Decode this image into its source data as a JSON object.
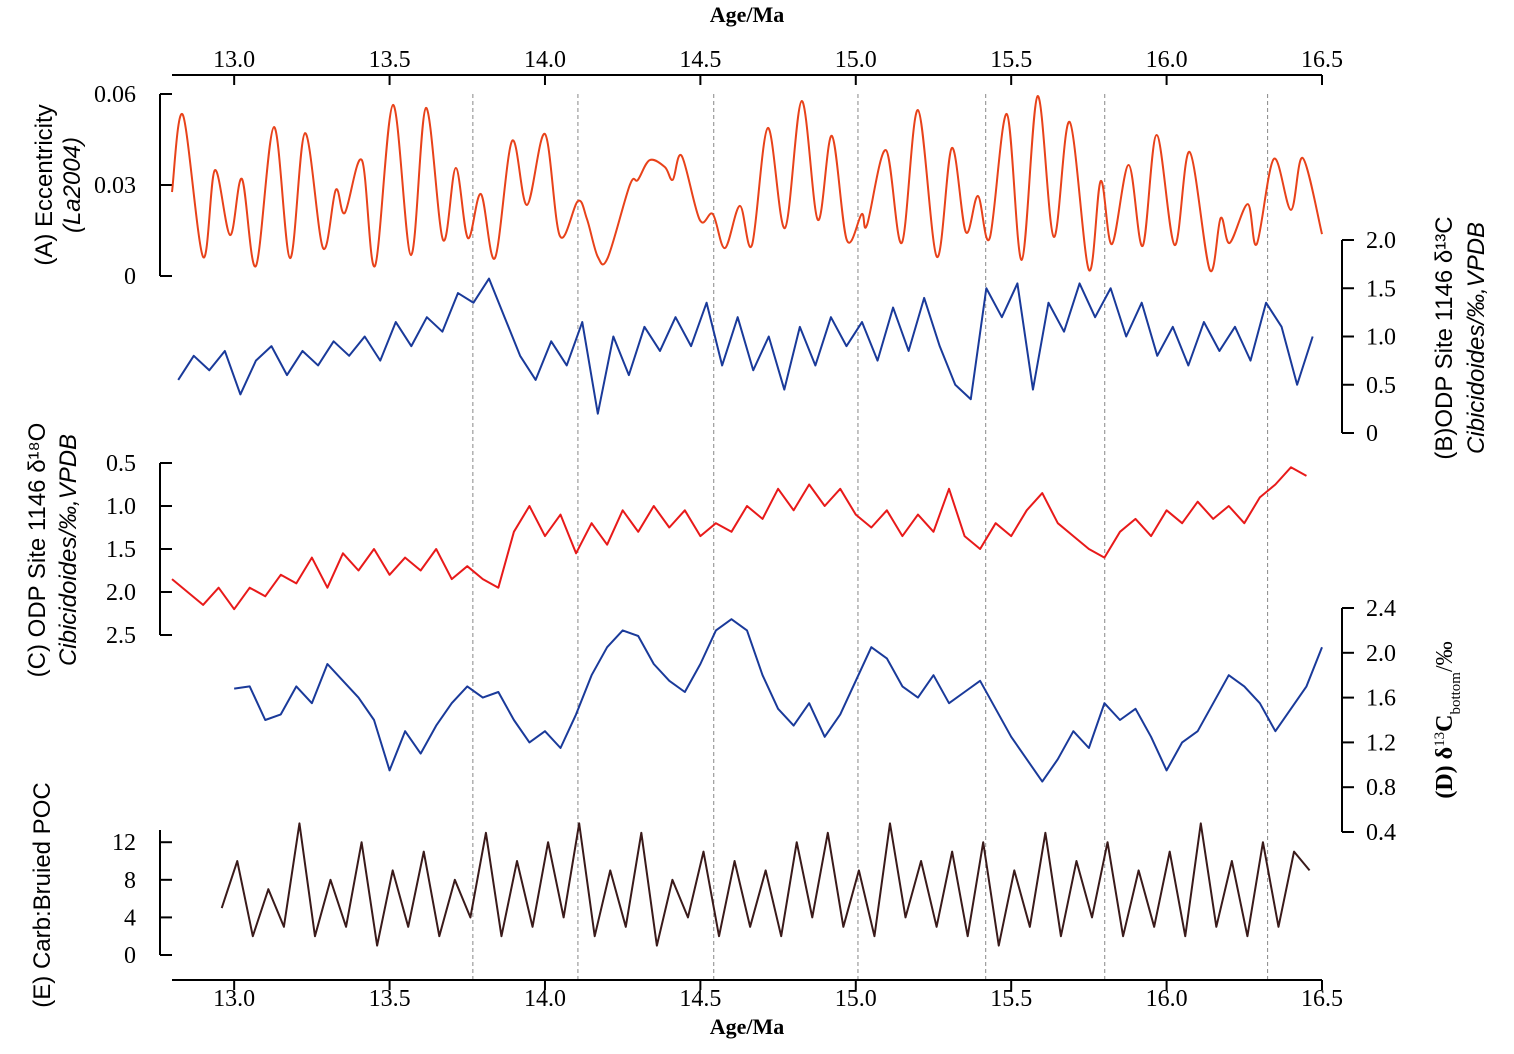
{
  "chart_data": {
    "type": "line",
    "title": "Age/Ma",
    "xlabel": "Age/Ma",
    "xlim": [
      12.8,
      16.5
    ],
    "xticks": [
      {
        "value": 13,
        "label": "13.0"
      },
      13.5,
      {
        "value": 14,
        "label": "14.0"
      },
      14.5,
      {
        "value": 15,
        "label": "15.0"
      },
      15.5,
      {
        "value": 16,
        "label": "16.0"
      },
      16.5
    ],
    "reference_lines": [
      13.768,
      14.106,
      14.543,
      15.007,
      15.418,
      15.801,
      16.325
    ],
    "panels": [
      {
        "ylabel_lines": [
          "(A) Eccentricity",
          "(La2004)"
        ],
        "y_side": "left",
        "color": "#e8421a",
        "smooth": true,
        "ylim": [
          0,
          0.06
        ],
        "yticks": [
          0,
          0.03,
          0.06
        ],
        "x": [
          12.8,
          12.835,
          12.9,
          12.938,
          12.987,
          13.025,
          13.07,
          13.128,
          13.18,
          13.228,
          13.286,
          13.327,
          13.356,
          13.411,
          13.453,
          13.511,
          13.569,
          13.617,
          13.672,
          13.713,
          13.752,
          13.794,
          13.839,
          13.894,
          13.942,
          14.0,
          14.048,
          14.106,
          14.135,
          14.17,
          14.202,
          14.273,
          14.299,
          14.337,
          14.386,
          14.411,
          14.44,
          14.498,
          14.54,
          14.579,
          14.627,
          14.666,
          14.717,
          14.772,
          14.826,
          14.878,
          14.923,
          14.971,
          15.019,
          15.036,
          15.097,
          15.148,
          15.2,
          15.261,
          15.309,
          15.354,
          15.393,
          15.431,
          15.486,
          15.534,
          15.585,
          15.637,
          15.688,
          15.75,
          15.788,
          15.824,
          15.878,
          15.923,
          15.968,
          16.026,
          16.074,
          16.139,
          16.174,
          16.203,
          16.261,
          16.29,
          16.345,
          16.4,
          16.438,
          16.5
        ],
        "values": [
          0.0277,
          0.0531,
          0.0063,
          0.0349,
          0.0135,
          0.032,
          0.0033,
          0.0491,
          0.0059,
          0.0471,
          0.0092,
          0.0284,
          0.0208,
          0.0382,
          0.0033,
          0.0564,
          0.0069,
          0.0554,
          0.0119,
          0.0356,
          0.0125,
          0.027,
          0.0059,
          0.0445,
          0.0234,
          0.0468,
          0.0132,
          0.0247,
          0.0188,
          0.0063,
          0.006,
          0.03,
          0.0317,
          0.0382,
          0.0359,
          0.0317,
          0.0396,
          0.0185,
          0.0204,
          0.0092,
          0.0231,
          0.0102,
          0.0488,
          0.0158,
          0.0577,
          0.0185,
          0.0462,
          0.0119,
          0.0204,
          0.0168,
          0.0415,
          0.0109,
          0.0547,
          0.0063,
          0.0422,
          0.0145,
          0.0264,
          0.0125,
          0.0534,
          0.0053,
          0.0593,
          0.0129,
          0.0508,
          0.002,
          0.0313,
          0.0105,
          0.0366,
          0.0099,
          0.0465,
          0.0102,
          0.0409,
          0.002,
          0.0191,
          0.0109,
          0.0237,
          0.0105,
          0.0386,
          0.0218,
          0.0389,
          0.0138
        ]
      },
      {
        "ylabel_lines": [
          "(B)ODP Site 1146 δ¹³C",
          "Cibicidoides/‰,VPDB"
        ],
        "y_side": "right",
        "color": "#1a3a9a",
        "ylim": [
          0,
          2
        ],
        "yticks": [
          0,
          0.5,
          {
            "value": 1,
            "label": "1.0"
          },
          1.5,
          {
            "value": 2,
            "label": "2.0"
          }
        ],
        "x": [
          12.82,
          12.87,
          12.92,
          12.97,
          13.02,
          13.07,
          13.12,
          13.17,
          13.22,
          13.27,
          13.32,
          13.37,
          13.42,
          13.47,
          13.52,
          13.57,
          13.62,
          13.67,
          13.72,
          13.77,
          13.82,
          13.87,
          13.92,
          13.97,
          14.02,
          14.07,
          14.12,
          14.17,
          14.22,
          14.27,
          14.32,
          14.37,
          14.42,
          14.47,
          14.52,
          14.57,
          14.62,
          14.67,
          14.72,
          14.77,
          14.82,
          14.87,
          14.92,
          14.97,
          15.02,
          15.07,
          15.12,
          15.17,
          15.22,
          15.27,
          15.32,
          15.37,
          15.42,
          15.47,
          15.52,
          15.57,
          15.62,
          15.67,
          15.72,
          15.77,
          15.82,
          15.87,
          15.92,
          15.97,
          16.02,
          16.07,
          16.12,
          16.17,
          16.22,
          16.27,
          16.32,
          16.37,
          16.42,
          16.47
        ],
        "values": [
          0.55,
          0.8,
          0.65,
          0.85,
          0.4,
          0.75,
          0.9,
          0.6,
          0.85,
          0.7,
          0.95,
          0.8,
          1.0,
          0.75,
          1.15,
          0.9,
          1.2,
          1.05,
          1.45,
          1.35,
          1.6,
          1.2,
          0.8,
          0.55,
          0.95,
          0.7,
          1.15,
          0.2,
          1.0,
          0.6,
          1.1,
          0.85,
          1.2,
          0.9,
          1.35,
          0.7,
          1.2,
          0.65,
          1.0,
          0.45,
          1.1,
          0.7,
          1.2,
          0.9,
          1.15,
          0.75,
          1.3,
          0.85,
          1.4,
          0.9,
          0.5,
          0.35,
          1.5,
          1.2,
          1.55,
          0.45,
          1.35,
          1.05,
          1.55,
          1.2,
          1.5,
          1.0,
          1.35,
          0.8,
          1.1,
          0.7,
          1.15,
          0.85,
          1.1,
          0.75,
          1.35,
          1.1,
          0.5,
          1.0
        ]
      },
      {
        "ylabel_lines": [
          "(C) ODP Site 1146 δ¹⁸O",
          "Cibicidoides/‰,VPDB"
        ],
        "y_side": "left",
        "color": "#e81a1a",
        "ylim": [
          2.5,
          0.5
        ],
        "yticks": [
          0.5,
          {
            "value": 1,
            "label": "1.0"
          },
          1.5,
          {
            "value": 2,
            "label": "2.0"
          },
          2.5
        ],
        "x": [
          12.8,
          12.85,
          12.9,
          12.95,
          13.0,
          13.05,
          13.1,
          13.15,
          13.2,
          13.25,
          13.3,
          13.35,
          13.4,
          13.45,
          13.5,
          13.55,
          13.6,
          13.65,
          13.7,
          13.75,
          13.8,
          13.85,
          13.9,
          13.95,
          14.0,
          14.05,
          14.1,
          14.15,
          14.2,
          14.25,
          14.3,
          14.35,
          14.4,
          14.45,
          14.5,
          14.55,
          14.6,
          14.65,
          14.7,
          14.75,
          14.8,
          14.85,
          14.9,
          14.95,
          15.0,
          15.05,
          15.1,
          15.15,
          15.2,
          15.25,
          15.3,
          15.35,
          15.4,
          15.45,
          15.5,
          15.55,
          15.6,
          15.65,
          15.7,
          15.75,
          15.8,
          15.85,
          15.9,
          15.95,
          16.0,
          16.05,
          16.1,
          16.15,
          16.2,
          16.25,
          16.3,
          16.35,
          16.4,
          16.45
        ],
        "values": [
          1.85,
          2.0,
          2.15,
          1.95,
          2.2,
          1.95,
          2.05,
          1.8,
          1.9,
          1.6,
          1.95,
          1.55,
          1.75,
          1.5,
          1.8,
          1.6,
          1.75,
          1.5,
          1.85,
          1.7,
          1.85,
          1.95,
          1.3,
          1.0,
          1.35,
          1.1,
          1.55,
          1.2,
          1.45,
          1.05,
          1.3,
          1.0,
          1.25,
          1.05,
          1.35,
          1.2,
          1.3,
          1.0,
          1.15,
          0.8,
          1.05,
          0.75,
          1.0,
          0.8,
          1.1,
          1.25,
          1.05,
          1.35,
          1.1,
          1.3,
          0.8,
          1.35,
          1.5,
          1.2,
          1.35,
          1.05,
          0.85,
          1.2,
          1.35,
          1.5,
          1.6,
          1.3,
          1.15,
          1.35,
          1.05,
          1.2,
          0.95,
          1.15,
          1.0,
          1.2,
          0.9,
          0.75,
          0.55,
          0.65
        ]
      },
      {
        "ylabel_parts": [
          "(D) δ",
          "13",
          "C",
          "bottom",
          "/‰"
        ],
        "y_side": "right",
        "color": "#1a3a9a",
        "ylim": [
          0.4,
          2.4
        ],
        "yticks": [
          0.4,
          0.8,
          1.2,
          1.6,
          {
            "value": 2,
            "label": "2.0"
          },
          2.4
        ],
        "x": [
          13.0,
          13.05,
          13.1,
          13.15,
          13.2,
          13.25,
          13.3,
          13.35,
          13.4,
          13.45,
          13.5,
          13.55,
          13.6,
          13.65,
          13.7,
          13.75,
          13.8,
          13.85,
          13.9,
          13.95,
          14.0,
          14.05,
          14.1,
          14.15,
          14.2,
          14.25,
          14.3,
          14.35,
          14.4,
          14.45,
          14.5,
          14.55,
          14.6,
          14.65,
          14.7,
          14.75,
          14.8,
          14.85,
          14.9,
          14.95,
          15.0,
          15.05,
          15.1,
          15.15,
          15.2,
          15.25,
          15.3,
          15.35,
          15.4,
          15.45,
          15.5,
          15.55,
          15.6,
          15.65,
          15.7,
          15.75,
          15.8,
          15.85,
          15.9,
          15.95,
          16.0,
          16.05,
          16.1,
          16.15,
          16.2,
          16.25,
          16.3,
          16.35,
          16.4,
          16.45,
          16.5
        ],
        "values": [
          1.68,
          1.7,
          1.4,
          1.45,
          1.7,
          1.55,
          1.9,
          1.75,
          1.6,
          1.4,
          0.95,
          1.3,
          1.1,
          1.35,
          1.55,
          1.7,
          1.6,
          1.65,
          1.4,
          1.2,
          1.3,
          1.15,
          1.45,
          1.8,
          2.05,
          2.2,
          2.15,
          1.9,
          1.75,
          1.65,
          1.9,
          2.2,
          2.3,
          2.2,
          1.8,
          1.5,
          1.35,
          1.55,
          1.25,
          1.45,
          1.75,
          2.05,
          1.95,
          1.7,
          1.6,
          1.8,
          1.55,
          1.65,
          1.75,
          1.5,
          1.25,
          1.05,
          0.85,
          1.05,
          1.3,
          1.15,
          1.55,
          1.4,
          1.5,
          1.25,
          0.95,
          1.2,
          1.3,
          1.55,
          1.8,
          1.7,
          1.55,
          1.3,
          1.5,
          1.7,
          2.05
        ]
      },
      {
        "ylabel_lines": [
          "(E) Carb:Bruied POC"
        ],
        "y_side": "left",
        "color": "#3a1a1a",
        "ylim": [
          0,
          13.3
        ],
        "yticks": [
          0,
          4,
          8,
          12
        ],
        "x": [
          12.96,
          13.01,
          13.06,
          13.11,
          13.16,
          13.21,
          13.26,
          13.31,
          13.36,
          13.41,
          13.46,
          13.51,
          13.56,
          13.61,
          13.66,
          13.71,
          13.76,
          13.81,
          13.86,
          13.91,
          13.96,
          14.01,
          14.06,
          14.11,
          14.16,
          14.21,
          14.26,
          14.31,
          14.36,
          14.41,
          14.46,
          14.51,
          14.56,
          14.61,
          14.66,
          14.71,
          14.76,
          14.81,
          14.86,
          14.91,
          14.96,
          15.01,
          15.06,
          15.11,
          15.16,
          15.21,
          15.26,
          15.31,
          15.36,
          15.41,
          15.46,
          15.51,
          15.56,
          15.61,
          15.66,
          15.71,
          15.76,
          15.81,
          15.86,
          15.91,
          15.96,
          16.01,
          16.06,
          16.11,
          16.16,
          16.21,
          16.26,
          16.31,
          16.36,
          16.41,
          16.46
        ],
        "values": [
          5,
          10,
          2,
          7,
          3,
          14,
          2,
          8,
          3,
          12,
          1,
          9,
          3,
          11,
          2,
          8,
          4,
          13,
          2,
          10,
          3,
          12,
          4,
          14,
          2,
          9,
          3,
          13,
          1,
          8,
          4,
          11,
          2,
          10,
          3,
          9,
          2,
          12,
          4,
          13,
          3,
          9,
          2,
          14,
          4,
          10,
          3,
          11,
          2,
          12,
          1,
          9,
          3,
          13,
          2,
          10,
          4,
          12,
          2,
          9,
          3,
          11,
          2,
          14,
          3,
          10,
          2,
          12,
          3,
          11,
          9
        ]
      }
    ]
  }
}
